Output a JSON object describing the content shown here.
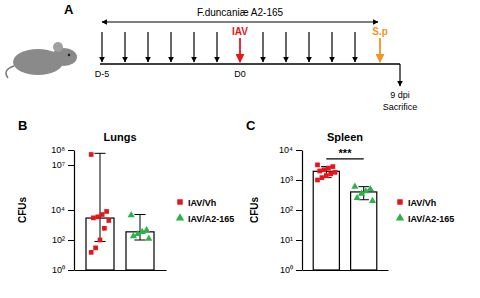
{
  "timeline": {
    "panel": "A",
    "treatment": "F.duncaniæ A2-165",
    "infection": "IAV",
    "start": "D-5",
    "infection_day": "D0",
    "challenge": "S.p",
    "end": "9 dpi",
    "end_label": "Sacrifice"
  },
  "chart_data": [
    {
      "type": "bar",
      "panel": "B",
      "title": "Lungs",
      "ylabel": "CFUs",
      "log": "y",
      "tick_labels": "y",
      "legend": "right",
      "categories": [
        null,
        null
      ],
      "ylim": [
        1,
        100000000
      ],
      "yticks": [
        {
          "value": 1,
          "label": "10⁰"
        },
        {
          "value": 100,
          "label": "10²"
        },
        {
          "value": 10000,
          "label": "10⁴"
        },
        {
          "value": 10000000,
          "label": "10⁷"
        },
        {
          "value": 100000000,
          "label": "10⁸"
        }
      ],
      "series": [
        {
          "name": "IAV/Vh",
          "color": "#e8141c",
          "marker": "square",
          "values": [
            2900,
            null
          ],
          "points": [
            50000000,
            8000,
            5000,
            3500,
            3000,
            2000,
            600,
            100,
            30,
            15
          ],
          "error_low": [
            80,
            null
          ],
          "error_high": [
            60000000,
            null
          ]
        },
        {
          "name": "IAV/A2-165",
          "color": "#2bb34a",
          "marker": "triangle",
          "values": [
            null,
            350
          ],
          "points": [
            4500,
            450,
            350,
            250,
            180,
            120
          ],
          "error_low": [
            null,
            100
          ],
          "error_high": [
            null,
            5000
          ]
        }
      ]
    },
    {
      "type": "bar",
      "panel": "C",
      "title": "Spleen",
      "ylabel": "CFUs",
      "log": "y",
      "tick_labels": "y",
      "legend": "right",
      "annotation": "***",
      "categories": [
        null,
        null
      ],
      "ylim": [
        1,
        10000
      ],
      "yticks": [
        {
          "value": 1,
          "label": "10⁰"
        },
        {
          "value": 10,
          "label": "10¹"
        },
        {
          "value": 100,
          "label": "10²"
        },
        {
          "value": 1000,
          "label": "10³"
        },
        {
          "value": 10000,
          "label": "10⁴"
        }
      ],
      "series": [
        {
          "name": "IAV/Vh",
          "color": "#e8141c",
          "marker": "square",
          "values": [
            1950,
            null
          ],
          "points": [
            3200,
            2800,
            2500,
            2200,
            2000,
            1800,
            1600,
            1400,
            1200,
            1000
          ],
          "error_low": [
            1200,
            null
          ],
          "error_high": [
            2800,
            null
          ]
        },
        {
          "name": "IAV/A2-165",
          "color": "#2bb34a",
          "marker": "triangle",
          "values": [
            null,
            400
          ],
          "points": [
            600,
            500,
            420,
            350,
            250,
            200
          ],
          "error_low": [
            null,
            220
          ],
          "error_high": [
            null,
            600
          ]
        }
      ]
    }
  ]
}
